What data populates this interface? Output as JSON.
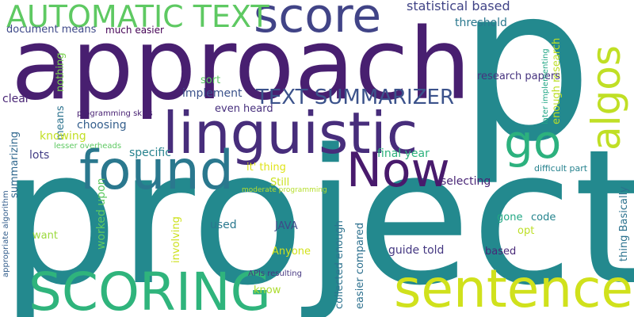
{
  "words": [
    {
      "text": "project",
      "color": "#23898e"
    },
    {
      "text": "p",
      "color": "#23898e"
    },
    {
      "text": "approach",
      "color": "#481f70"
    },
    {
      "text": "SCORING",
      "color": "#2fb47c"
    },
    {
      "text": "sentence",
      "color": "#d0e11c"
    },
    {
      "text": "linguistic",
      "color": "#472d7b"
    },
    {
      "text": "found",
      "color": "#2a788e"
    },
    {
      "text": "score",
      "color": "#414487"
    },
    {
      "text": "AUTOMATIC TEXT",
      "color": "#5ec962"
    },
    {
      "text": "Now",
      "color": "#481a6c"
    },
    {
      "text": "algos",
      "color": "#c0df25"
    },
    {
      "text": "go",
      "color": "#2cb17e"
    },
    {
      "text": "TEXT SUMMARIZER",
      "color": "#3b528b"
    },
    {
      "text": "statistical based",
      "color": "#414487"
    },
    {
      "text": "threshold",
      "color": "#2a788e"
    },
    {
      "text": "document means",
      "color": "#3e4989"
    },
    {
      "text": "much easier",
      "color": "#440154"
    },
    {
      "text": "sort",
      "color": "#5ec962"
    },
    {
      "text": "implement",
      "color": "#3b528b"
    },
    {
      "text": "clear",
      "color": "#482475"
    },
    {
      "text": "nothing",
      "color": "#7ad151"
    },
    {
      "text": "means",
      "color": "#2c728e"
    },
    {
      "text": "programming skills",
      "color": "#482173"
    },
    {
      "text": "choosing",
      "color": "#355f8d"
    },
    {
      "text": "knowing",
      "color": "#c2df23"
    },
    {
      "text": "summarizing",
      "color": "#31688e"
    },
    {
      "text": "lesser overheads",
      "color": "#5ec962"
    },
    {
      "text": "specific",
      "color": "#26828e"
    },
    {
      "text": "lots",
      "color": "#433e85"
    },
    {
      "text": "even heard",
      "color": "#472f7d"
    },
    {
      "text": "enough research",
      "color": "#bddf26"
    },
    {
      "text": "research papers",
      "color": "#46337f"
    },
    {
      "text": "later implementing",
      "color": "#21a685"
    },
    {
      "text": "thing Basically",
      "color": "#2c728e"
    },
    {
      "text": "final year",
      "color": "#2db27d"
    },
    {
      "text": "difficult part",
      "color": "#26828e"
    },
    {
      "text": "it' thing",
      "color": "#dfe318"
    },
    {
      "text": "Still",
      "color": "#cae11f"
    },
    {
      "text": "moderate programming",
      "color": "#b5de2b"
    },
    {
      "text": "selecting",
      "color": "#482576"
    },
    {
      "text": "appropriate algorithm",
      "color": "#355f8d"
    },
    {
      "text": "worked upon",
      "color": "#5ec962"
    },
    {
      "text": "want",
      "color": "#9bd93c"
    },
    {
      "text": "used",
      "color": "#2a788e"
    },
    {
      "text": "JAVA",
      "color": "#3e4a89"
    },
    {
      "text": "Anyone",
      "color": "#d2e21b"
    },
    {
      "text": "involving",
      "color": "#cde11d"
    },
    {
      "text": "collected enough",
      "color": "#2c728e"
    },
    {
      "text": "easier compared",
      "color": "#2d708e"
    },
    {
      "text": "guide told",
      "color": "#453882"
    },
    {
      "text": "gone",
      "color": "#22a884"
    },
    {
      "text": "code",
      "color": "#25848e"
    },
    {
      "text": "opt",
      "color": "#bddf26"
    },
    {
      "text": "based",
      "color": "#482878"
    },
    {
      "text": "APIs resulting",
      "color": "#453781"
    },
    {
      "text": "know",
      "color": "#addc30"
    }
  ]
}
